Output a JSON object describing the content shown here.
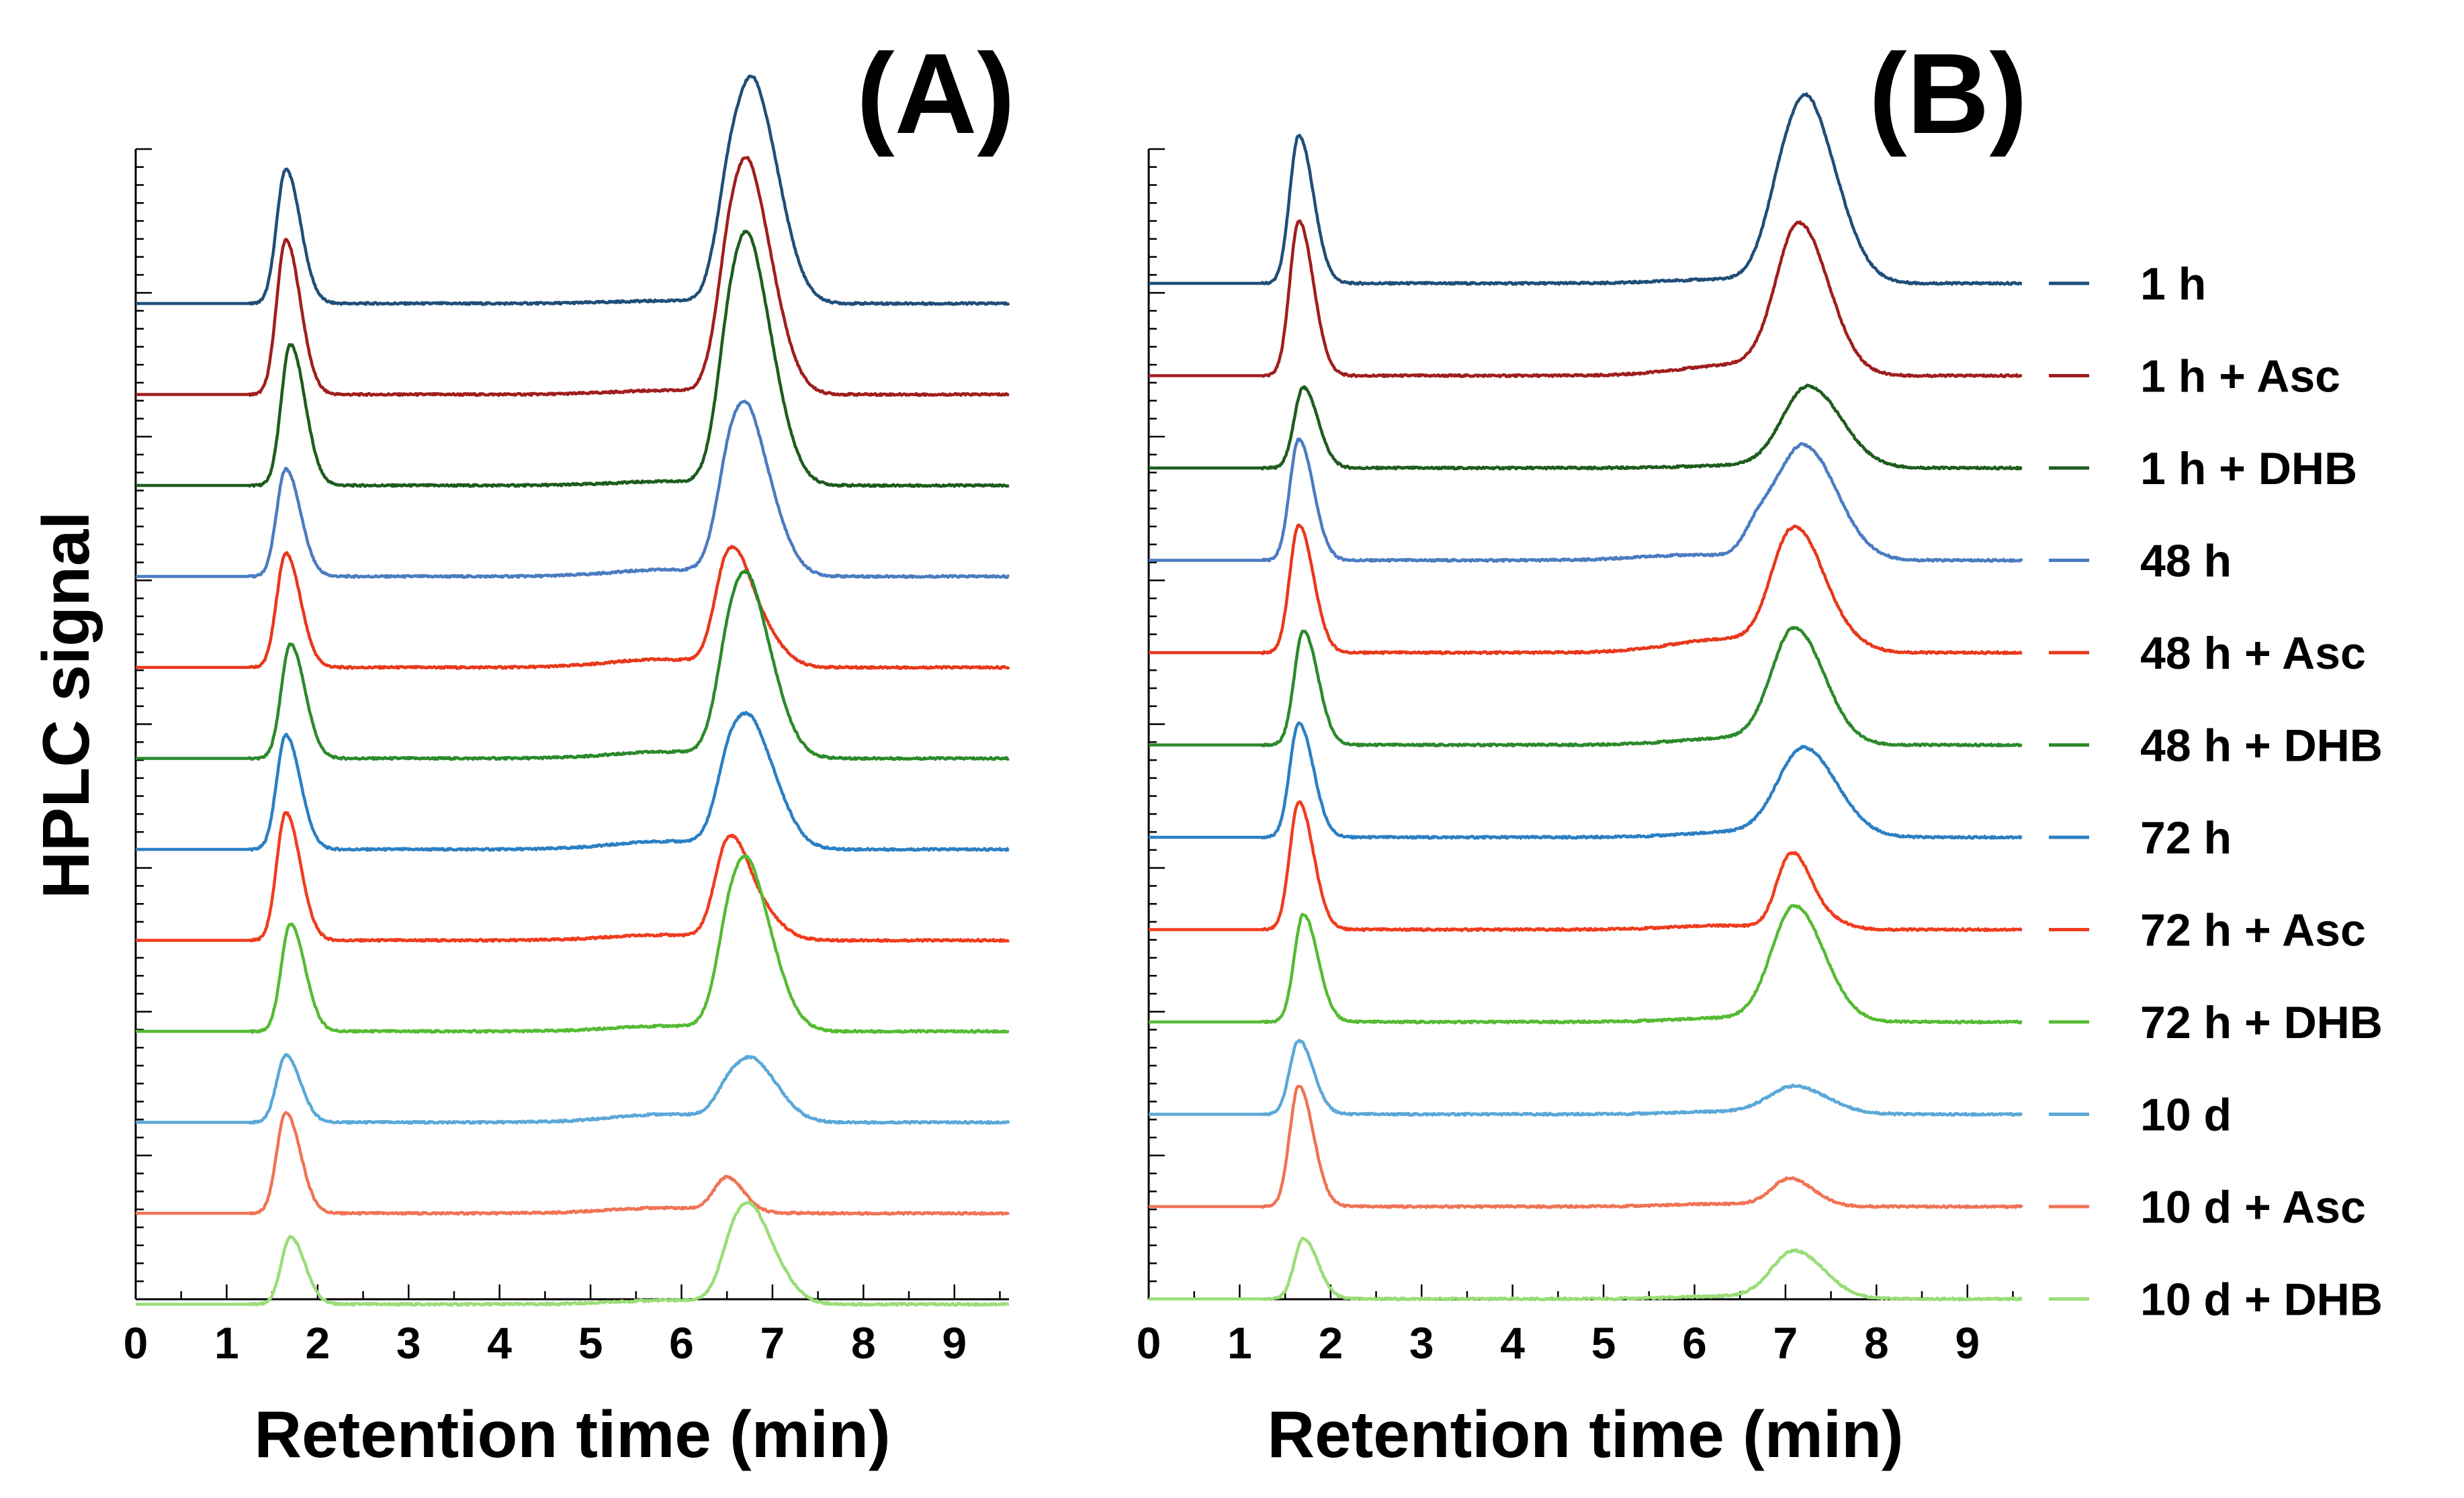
{
  "chart_data": {
    "type": "line",
    "ylabel": "HPLC signal",
    "xlabel": "Retention time (min)",
    "xlim": [
      0,
      9.6
    ],
    "xticks": [
      0,
      1,
      2,
      3,
      4,
      5,
      6,
      7,
      8,
      9
    ],
    "grid": false,
    "legend_placement": "right of panel B",
    "stacked_offset": "traces vertically offset, one baseline per sample",
    "series_styles": [
      {
        "name": "1 h",
        "color": "#1f4e79"
      },
      {
        "name": "1 h + Asc",
        "color": "#a01e1e"
      },
      {
        "name": "1 h + DHB",
        "color": "#1e5c1e"
      },
      {
        "name": "48 h",
        "color": "#4a7cc1"
      },
      {
        "name": "48 h + Asc",
        "color": "#e8381b"
      },
      {
        "name": "48 h + DHB",
        "color": "#2b8a2b"
      },
      {
        "name": "72 h",
        "color": "#2b7fc3"
      },
      {
        "name": "72 h + Asc",
        "color": "#f03c1e"
      },
      {
        "name": "72 h + DHB",
        "color": "#55bb33"
      },
      {
        "name": "10 d",
        "color": "#5aa8d9"
      },
      {
        "name": "10 d + Asc",
        "color": "#f07355"
      },
      {
        "name": "10 d + DHB",
        "color": "#99dd77"
      }
    ],
    "panels": [
      {
        "title": "(A)",
        "series": [
          {
            "name": "1 h",
            "peak1": {
              "rt": 1.65,
              "h": 1.0,
              "w": 0.1
            },
            "peak2": [
              {
                "rt": 6.55,
                "h": 0.85,
                "w": 0.16
              },
              {
                "rt": 6.85,
                "h": 1.3,
                "w": 0.2
              }
            ],
            "shoulder": 0.02
          },
          {
            "name": "1 h + Asc",
            "peak1": {
              "rt": 1.65,
              "h": 1.15,
              "w": 0.1
            },
            "peak2": [
              {
                "rt": 6.55,
                "h": 0.9,
                "w": 0.16
              },
              {
                "rt": 6.8,
                "h": 1.2,
                "w": 0.2
              }
            ],
            "shoulder": 0.03
          },
          {
            "name": "1 h + DHB",
            "peak1": {
              "rt": 1.7,
              "h": 1.05,
              "w": 0.1
            },
            "peak2": [
              {
                "rt": 6.55,
                "h": 0.95,
                "w": 0.16
              },
              {
                "rt": 6.8,
                "h": 1.3,
                "w": 0.2
              }
            ],
            "shoulder": 0.03
          },
          {
            "name": "48 h",
            "peak1": {
              "rt": 1.65,
              "h": 0.8,
              "w": 0.1
            },
            "peak2": [
              {
                "rt": 6.55,
                "h": 0.75,
                "w": 0.16
              },
              {
                "rt": 6.8,
                "h": 0.8,
                "w": 0.2
              }
            ],
            "shoulder": 0.05
          },
          {
            "name": "48 h + Asc",
            "peak1": {
              "rt": 1.65,
              "h": 0.85,
              "w": 0.1
            },
            "peak2": [
              {
                "rt": 6.5,
                "h": 0.65,
                "w": 0.14
              },
              {
                "rt": 6.75,
                "h": 0.4,
                "w": 0.2
              }
            ],
            "shoulder": 0.06
          },
          {
            "name": "48 h + DHB",
            "peak1": {
              "rt": 1.7,
              "h": 0.85,
              "w": 0.1
            },
            "peak2": [
              {
                "rt": 6.55,
                "h": 0.75,
                "w": 0.16
              },
              {
                "rt": 6.8,
                "h": 0.9,
                "w": 0.2
              }
            ],
            "shoulder": 0.05
          },
          {
            "name": "72 h",
            "peak1": {
              "rt": 1.65,
              "h": 0.85,
              "w": 0.1
            },
            "peak2": [
              {
                "rt": 6.55,
                "h": 0.65,
                "w": 0.16
              },
              {
                "rt": 6.85,
                "h": 0.65,
                "w": 0.2
              }
            ],
            "shoulder": 0.06
          },
          {
            "name": "72 h + Asc",
            "peak1": {
              "rt": 1.65,
              "h": 0.95,
              "w": 0.1
            },
            "peak2": [
              {
                "rt": 6.5,
                "h": 0.6,
                "w": 0.14
              },
              {
                "rt": 6.75,
                "h": 0.3,
                "w": 0.2
              }
            ],
            "shoulder": 0.04
          },
          {
            "name": "72 h + DHB",
            "peak1": {
              "rt": 1.7,
              "h": 0.8,
              "w": 0.1
            },
            "peak2": [
              {
                "rt": 6.55,
                "h": 0.7,
                "w": 0.16
              },
              {
                "rt": 6.8,
                "h": 0.85,
                "w": 0.2
              }
            ],
            "shoulder": 0.04
          },
          {
            "name": "10 d",
            "peak1": {
              "rt": 1.65,
              "h": 0.5,
              "w": 0.1
            },
            "peak2": [
              {
                "rt": 6.55,
                "h": 0.25,
                "w": 0.16
              },
              {
                "rt": 6.85,
                "h": 0.35,
                "w": 0.2
              }
            ],
            "shoulder": 0.06
          },
          {
            "name": "10 d + Asc",
            "peak1": {
              "rt": 1.65,
              "h": 0.75,
              "w": 0.1
            },
            "peak2": [
              {
                "rt": 6.5,
                "h": 0.25,
                "w": 0.14
              }
            ],
            "shoulder": 0.04
          },
          {
            "name": "10 d + DHB",
            "peak1": {
              "rt": 1.7,
              "h": 0.5,
              "w": 0.1
            },
            "peak2": [
              {
                "rt": 6.6,
                "h": 0.45,
                "w": 0.16
              },
              {
                "rt": 6.85,
                "h": 0.45,
                "w": 0.2
              }
            ],
            "shoulder": 0.03
          }
        ]
      },
      {
        "title": "(B)",
        "series": [
          {
            "name": "1 h",
            "peak1": {
              "rt": 1.65,
              "h": 1.1,
              "w": 0.1
            },
            "peak2": [
              {
                "rt": 7.0,
                "h": 0.6,
                "w": 0.22
              },
              {
                "rt": 7.3,
                "h": 1.0,
                "w": 0.25
              }
            ],
            "shoulder": 0.03
          },
          {
            "name": "1 h + Asc",
            "peak1": {
              "rt": 1.65,
              "h": 1.15,
              "w": 0.1
            },
            "peak2": [
              {
                "rt": 7.15,
                "h": 1.1,
                "w": 0.25
              }
            ],
            "shoulder": 0.08
          },
          {
            "name": "1 h + DHB",
            "peak1": {
              "rt": 1.7,
              "h": 0.6,
              "w": 0.1
            },
            "peak2": [
              {
                "rt": 7.25,
                "h": 0.6,
                "w": 0.28
              }
            ],
            "shoulder": 0.02
          },
          {
            "name": "48 h",
            "peak1": {
              "rt": 1.65,
              "h": 0.9,
              "w": 0.1
            },
            "peak2": [
              {
                "rt": 6.7,
                "h": 0.2,
                "w": 0.15
              },
              {
                "rt": 7.2,
                "h": 0.85,
                "w": 0.28
              }
            ],
            "shoulder": 0.04
          },
          {
            "name": "48 h + Asc",
            "peak1": {
              "rt": 1.65,
              "h": 0.95,
              "w": 0.1
            },
            "peak2": [
              {
                "rt": 7.05,
                "h": 0.75,
                "w": 0.22
              },
              {
                "rt": 7.35,
                "h": 0.25,
                "w": 0.25
              }
            ],
            "shoulder": 0.1
          },
          {
            "name": "48 h + DHB",
            "peak1": {
              "rt": 1.7,
              "h": 0.85,
              "w": 0.1
            },
            "peak2": [
              {
                "rt": 7.1,
                "h": 0.85,
                "w": 0.25
              }
            ],
            "shoulder": 0.05
          },
          {
            "name": "72 h",
            "peak1": {
              "rt": 1.65,
              "h": 0.85,
              "w": 0.1
            },
            "peak2": [
              {
                "rt": 7.2,
                "h": 0.65,
                "w": 0.28
              }
            ],
            "shoulder": 0.04
          },
          {
            "name": "72 h + Asc",
            "peak1": {
              "rt": 1.65,
              "h": 0.95,
              "w": 0.1
            },
            "peak2": [
              {
                "rt": 7.05,
                "h": 0.5,
                "w": 0.15
              },
              {
                "rt": 7.3,
                "h": 0.12,
                "w": 0.2
              }
            ],
            "shoulder": 0.03
          },
          {
            "name": "72 h + DHB",
            "peak1": {
              "rt": 1.7,
              "h": 0.8,
              "w": 0.1
            },
            "peak2": [
              {
                "rt": 7.1,
                "h": 0.85,
                "w": 0.25
              }
            ],
            "shoulder": 0.03
          },
          {
            "name": "10 d",
            "peak1": {
              "rt": 1.65,
              "h": 0.55,
              "w": 0.1
            },
            "peak2": [
              {
                "rt": 7.1,
                "h": 0.2,
                "w": 0.28
              }
            ],
            "shoulder": 0.02
          },
          {
            "name": "10 d + Asc",
            "peak1": {
              "rt": 1.65,
              "h": 0.9,
              "w": 0.1
            },
            "peak2": [
              {
                "rt": 7.05,
                "h": 0.2,
                "w": 0.2
              }
            ],
            "shoulder": 0.02
          },
          {
            "name": "10 d + DHB",
            "peak1": {
              "rt": 1.7,
              "h": 0.45,
              "w": 0.1
            },
            "peak2": [
              {
                "rt": 7.1,
                "h": 0.35,
                "w": 0.25
              }
            ],
            "shoulder": 0.02
          }
        ]
      }
    ]
  }
}
